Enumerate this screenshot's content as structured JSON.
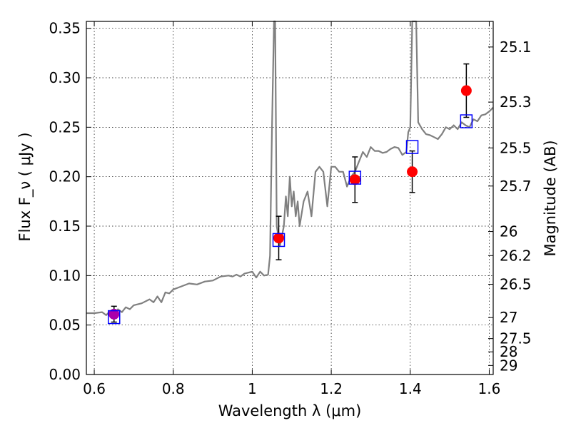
{
  "chart_data": {
    "type": "scatter",
    "xlabel": "Wavelength λ (μm)",
    "ylabel": "Flux F_ν ( μJy )",
    "y2label": "Magnitude (AB)",
    "xlim": [
      0.58,
      1.61
    ],
    "ylim": [
      0.0,
      0.357
    ],
    "grid": true,
    "x_ticks": [
      0.6,
      0.8,
      1.0,
      1.2,
      1.4,
      1.6
    ],
    "x_tick_labels": [
      "0.6",
      "0.8",
      "1",
      "1.2",
      "1.4",
      "1.6"
    ],
    "y_ticks": [
      0.0,
      0.05,
      0.1,
      0.15,
      0.2,
      0.25,
      0.3,
      0.35
    ],
    "y_tick_labels": [
      "0.00",
      "0.05",
      "0.10",
      "0.15",
      "0.20",
      "0.25",
      "0.30",
      "0.35"
    ],
    "mag_ticks": [
      25.1,
      25.3,
      25.5,
      25.7,
      26,
      26.2,
      26.5,
      27,
      27.5,
      28,
      29
    ],
    "mag_tick_labels": [
      "25.1",
      "25.3",
      "25.5",
      "25.7",
      "26",
      "26.2",
      "26.5",
      "27",
      "27.5",
      "28",
      "29"
    ],
    "series": [
      {
        "type": "line",
        "color": "#808080",
        "x": [
          0.58,
          0.6,
          0.62,
          0.63,
          0.64,
          0.65,
          0.66,
          0.67,
          0.68,
          0.69,
          0.7,
          0.72,
          0.74,
          0.75,
          0.76,
          0.77,
          0.78,
          0.79,
          0.8,
          0.82,
          0.84,
          0.86,
          0.88,
          0.9,
          0.92,
          0.94,
          0.95,
          0.96,
          0.97,
          0.98,
          1.0,
          1.01,
          1.02,
          1.03,
          1.04,
          1.045,
          1.05,
          1.055,
          1.058,
          1.062,
          1.07,
          1.08,
          1.085,
          1.09,
          1.095,
          1.1,
          1.105,
          1.11,
          1.115,
          1.12,
          1.13,
          1.14,
          1.15,
          1.16,
          1.17,
          1.18,
          1.19,
          1.2,
          1.21,
          1.22,
          1.23,
          1.24,
          1.25,
          1.26,
          1.27,
          1.28,
          1.29,
          1.3,
          1.31,
          1.32,
          1.33,
          1.34,
          1.35,
          1.36,
          1.37,
          1.38,
          1.39,
          1.395,
          1.4,
          1.405,
          1.41,
          1.415,
          1.42,
          1.43,
          1.44,
          1.45,
          1.46,
          1.47,
          1.48,
          1.49,
          1.5,
          1.51,
          1.52,
          1.53,
          1.54,
          1.55,
          1.56,
          1.57,
          1.58,
          1.59,
          1.6,
          1.61
        ],
        "y": [
          0.062,
          0.062,
          0.063,
          0.06,
          0.064,
          0.061,
          0.066,
          0.063,
          0.068,
          0.066,
          0.07,
          0.072,
          0.076,
          0.073,
          0.079,
          0.073,
          0.083,
          0.082,
          0.086,
          0.089,
          0.092,
          0.091,
          0.094,
          0.095,
          0.099,
          0.1,
          0.099,
          0.101,
          0.099,
          0.102,
          0.104,
          0.098,
          0.104,
          0.1,
          0.101,
          0.12,
          0.25,
          0.357,
          0.357,
          0.15,
          0.13,
          0.15,
          0.18,
          0.16,
          0.2,
          0.17,
          0.185,
          0.16,
          0.175,
          0.15,
          0.175,
          0.185,
          0.16,
          0.205,
          0.21,
          0.205,
          0.17,
          0.21,
          0.21,
          0.205,
          0.205,
          0.19,
          0.2,
          0.205,
          0.215,
          0.225,
          0.22,
          0.23,
          0.226,
          0.226,
          0.224,
          0.225,
          0.228,
          0.23,
          0.229,
          0.222,
          0.225,
          0.245,
          0.25,
          0.357,
          0.357,
          0.357,
          0.255,
          0.248,
          0.243,
          0.242,
          0.24,
          0.238,
          0.243,
          0.25,
          0.248,
          0.252,
          0.248,
          0.255,
          0.252,
          0.25,
          0.258,
          0.256,
          0.262,
          0.263,
          0.266,
          0.27
        ]
      },
      {
        "type": "scatter",
        "marker": "circle",
        "color": "#ff0000",
        "x": [
          1.067,
          1.26,
          1.405,
          1.542
        ],
        "y": [
          0.138,
          0.197,
          0.205,
          0.287
        ],
        "yerr": [
          0.022,
          0.023,
          0.021,
          0.027
        ]
      },
      {
        "type": "scatter",
        "marker": "circle",
        "color": "#aa00aa",
        "x": [
          0.65
        ],
        "y": [
          0.061
        ],
        "yerr": [
          0.008
        ]
      },
      {
        "type": "scatter",
        "marker": "open-square",
        "color": "#0000ff",
        "x": [
          0.65,
          1.067,
          1.26,
          1.405,
          1.542
        ],
        "y": [
          0.058,
          0.136,
          0.199,
          0.23,
          0.256
        ]
      }
    ]
  }
}
